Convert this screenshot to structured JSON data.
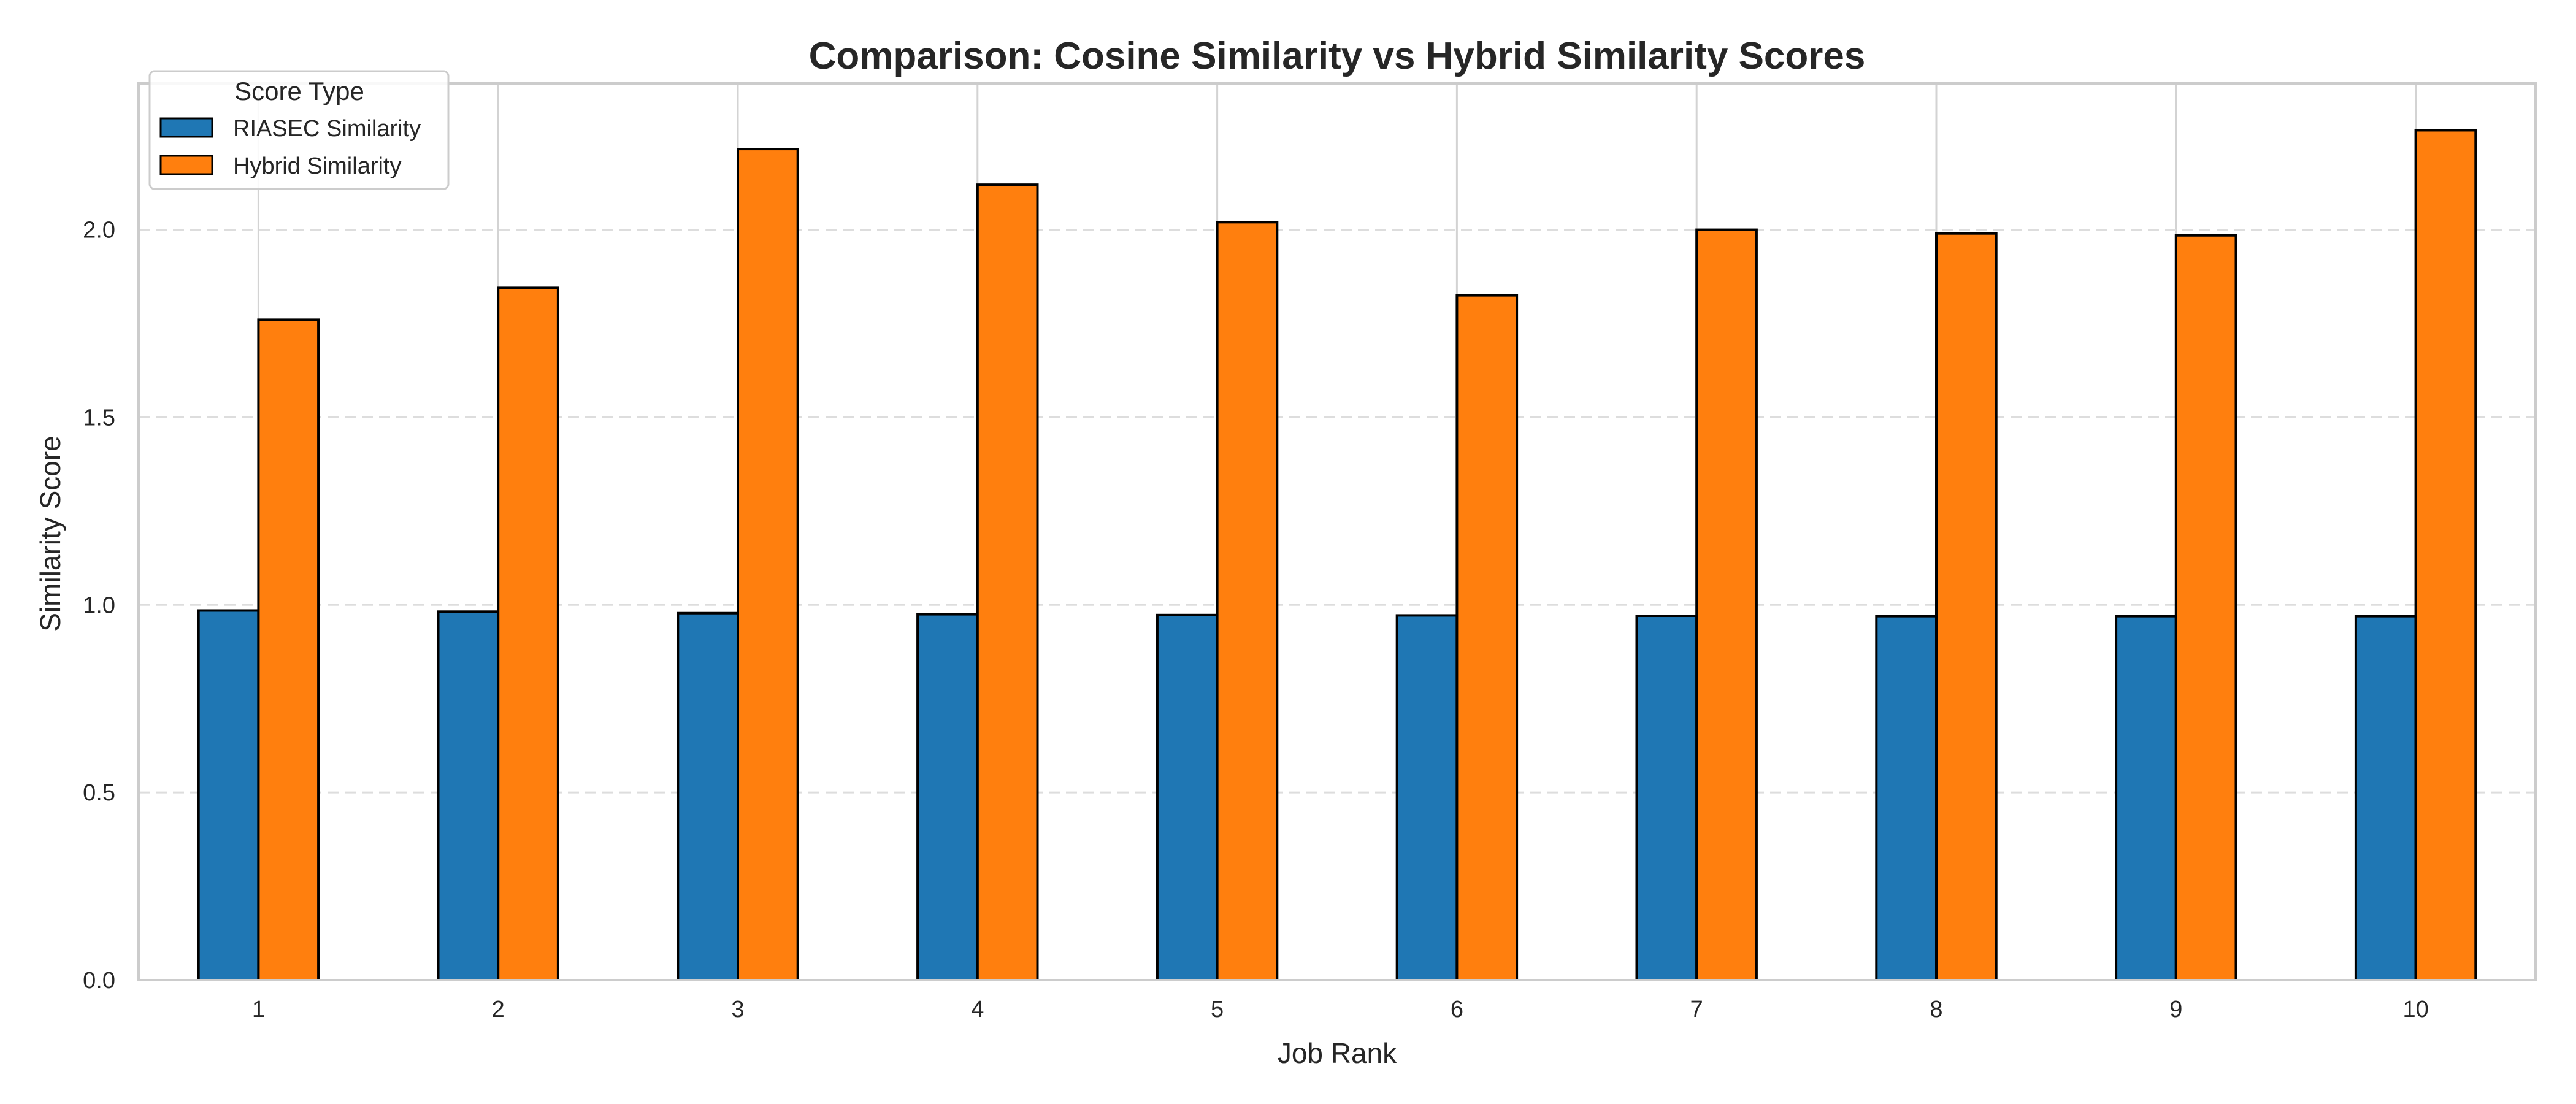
{
  "chart_data": {
    "type": "bar",
    "title": "Comparison: Cosine Similarity vs Hybrid Similarity Scores",
    "xlabel": "Job Rank",
    "ylabel": "Similarity Score",
    "categories": [
      "1",
      "2",
      "3",
      "4",
      "5",
      "6",
      "7",
      "8",
      "9",
      "10"
    ],
    "series": [
      {
        "name": "RIASEC Similarity",
        "color": "#1f77b4",
        "values": [
          0.985,
          0.982,
          0.978,
          0.975,
          0.973,
          0.972,
          0.971,
          0.97,
          0.97,
          0.97
        ]
      },
      {
        "name": "Hybrid Similarity",
        "color": "#ff7f0e",
        "values": [
          1.76,
          1.845,
          2.215,
          2.12,
          2.02,
          1.825,
          2.0,
          1.99,
          1.985,
          2.265
        ]
      }
    ],
    "ylim": [
      0,
      2.39
    ],
    "yticks": [
      "0.0",
      "0.5",
      "1.0",
      "1.5",
      "2.0"
    ],
    "grid": "on",
    "legend": {
      "title": "Score Type",
      "position": "top-left"
    }
  }
}
